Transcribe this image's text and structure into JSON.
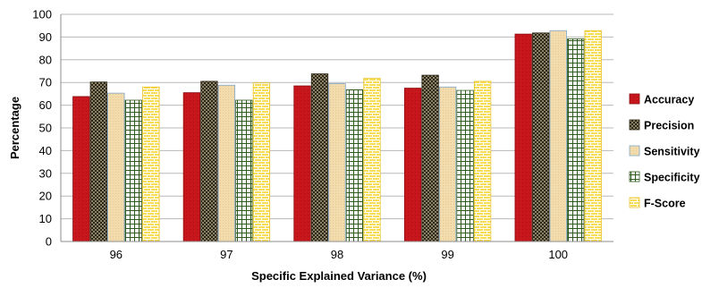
{
  "chart_data": {
    "type": "bar",
    "title": "",
    "xlabel": "Specific Explained Variance (%)",
    "ylabel": "Percentage",
    "ylim": [
      0,
      100
    ],
    "yticks": [
      0,
      10,
      20,
      30,
      40,
      50,
      60,
      70,
      80,
      90,
      100
    ],
    "grid": true,
    "legend_position": "right",
    "categories": [
      "96",
      "97",
      "98",
      "99",
      "100"
    ],
    "series": [
      {
        "name": "Accuracy",
        "values": [
          63.8,
          65.5,
          68.5,
          67.5,
          91.3
        ],
        "color": "#c8161d",
        "pattern": "solid-red"
      },
      {
        "name": "Precision",
        "values": [
          70.2,
          70.5,
          73.8,
          73.2,
          91.8
        ],
        "color": "#4a3f2a",
        "pattern": "checkerboard"
      },
      {
        "name": "Sensitivity",
        "values": [
          65.3,
          68.8,
          69.5,
          68.0,
          92.8
        ],
        "color": "#f0d9a8",
        "pattern": "beige-blue-edge"
      },
      {
        "name": "Specificity",
        "values": [
          62.2,
          62.2,
          66.8,
          66.5,
          89.2
        ],
        "color": "#2f5a1e",
        "pattern": "grid"
      },
      {
        "name": "F-Score",
        "values": [
          68.0,
          69.8,
          71.8,
          70.5,
          92.8
        ],
        "color": "#f5d23a",
        "pattern": "brick"
      }
    ]
  }
}
